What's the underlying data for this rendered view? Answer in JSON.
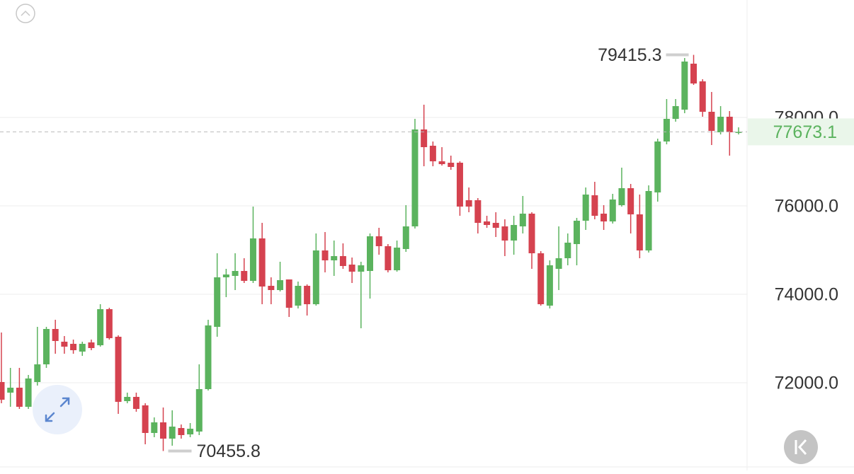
{
  "chart_data": {
    "type": "candlestick",
    "categories": [
      null,
      null,
      null,
      null,
      null,
      null,
      null,
      null,
      null,
      null,
      null,
      null,
      null,
      null,
      null,
      null,
      null,
      null,
      null,
      null,
      null,
      null,
      null,
      null,
      null,
      null,
      null,
      null,
      null,
      null,
      null,
      null,
      null,
      null,
      null,
      null,
      null,
      null,
      null,
      null,
      null,
      null,
      null,
      null,
      null,
      null,
      null,
      null,
      null,
      null,
      null,
      null,
      null,
      null,
      null,
      null,
      null,
      null,
      null,
      null,
      null,
      null,
      null,
      null,
      null,
      null,
      null,
      null,
      null,
      null,
      null,
      null,
      null,
      null,
      null,
      null,
      null,
      null,
      null,
      null,
      null,
      null,
      null
    ],
    "open": [
      72016,
      71776,
      71888,
      71456,
      72016,
      72416,
      73216,
      72928,
      72880,
      72704,
      72912,
      72848,
      73664,
      73040,
      71584,
      71680,
      71488,
      70864,
      71104,
      70736,
      70976,
      70832,
      70896,
      71856,
      73264,
      74384,
      74416,
      74528,
      74304,
      75264,
      74192,
      74096,
      74336,
      73744,
      74192,
      73776,
      74992,
      74768,
      74864,
      74672,
      74512,
      74528,
      75312,
      75088,
      74544,
      75024,
      75536,
      77728,
      77360,
      77008,
      76976,
      76976,
      76128,
      76128,
      75648,
      75616,
      75536,
      75216,
      75536,
      75824,
      74928,
      73744,
      74576,
      74816,
      75136,
      75664,
      76240,
      75824,
      75648,
      76016,
      76400,
      75808,
      74992,
      76304,
      77456,
      77968,
      78176,
      79216,
      78816,
      78128,
      77664,
      78016,
      77664
    ],
    "high": [
      73136,
      72336,
      72336,
      72176,
      73264,
      73264,
      73424,
      73056,
      72976,
      72928,
      72976,
      73776,
      73696,
      73072,
      71776,
      71776,
      71536,
      71216,
      71440,
      71376,
      71056,
      71088,
      72416,
      73424,
      74928,
      74576,
      74928,
      74816,
      75984,
      75616,
      74384,
      74736,
      74336,
      74288,
      74224,
      75376,
      75408,
      75216,
      75152,
      74832,
      74736,
      75376,
      75504,
      75136,
      75216,
      76016,
      77968,
      78288,
      77456,
      77328,
      77136,
      77008,
      76416,
      76176,
      75776,
      75856,
      75696,
      75776,
      76224,
      75856,
      74976,
      74768,
      75536,
      75376,
      75728,
      76416,
      76544,
      76016,
      76272,
      76864,
      76496,
      76256,
      76464,
      77520,
      78416,
      78416,
      79344,
      79415.3,
      78864,
      78576,
      78256,
      78144,
      77776
    ],
    "low": [
      71536,
      71456,
      71408,
      71408,
      71936,
      72336,
      72656,
      72656,
      72656,
      72608,
      72736,
      72816,
      72976,
      71296,
      71536,
      71344,
      70608,
      70768,
      70455.8,
      70576,
      70736,
      70768,
      70816,
      71824,
      73040,
      73936,
      74096,
      74256,
      74256,
      73776,
      73776,
      74064,
      73488,
      73680,
      73520,
      73744,
      74496,
      74416,
      74576,
      74256,
      73232,
      73904,
      74896,
      74496,
      74512,
      74960,
      75488,
      76896,
      76896,
      76912,
      76816,
      75776,
      75856,
      75376,
      75504,
      75296,
      74864,
      74896,
      75376,
      74576,
      73744,
      73680,
      74096,
      74656,
      74656,
      75456,
      75696,
      75456,
      75600,
      75984,
      75376,
      74816,
      74944,
      76096,
      77392,
      77904,
      78096,
      78736,
      78016,
      77376,
      77616,
      77136,
      77616
    ],
    "close": [
      71616,
      71888,
      71456,
      72096,
      72416,
      73216,
      72944,
      72816,
      72736,
      72880,
      72784,
      73664,
      73008,
      71568,
      71680,
      71408,
      70864,
      71104,
      70736,
      71008,
      70816,
      70960,
      71856,
      73296,
      74384,
      74448,
      74528,
      74304,
      75264,
      74176,
      74096,
      74320,
      73696,
      74192,
      73776,
      74992,
      74768,
      74864,
      74640,
      74512,
      74656,
      75312,
      75088,
      74544,
      75056,
      75536,
      77728,
      77328,
      77008,
      76944,
      76880,
      75984,
      75984,
      75616,
      75568,
      75504,
      75216,
      75568,
      75824,
      74928,
      73776,
      74656,
      74816,
      75168,
      75664,
      76256,
      75776,
      75648,
      76144,
      76400,
      75808,
      74992,
      76336,
      77456,
      77968,
      78256,
      79264,
      78768,
      78128,
      77696,
      78016,
      77664,
      77673.1
    ],
    "up_color": "#5bb35e",
    "down_color": "#d5424f",
    "ylim": [
      70096,
      80656
    ],
    "yticks": [
      {
        "value": 72000,
        "label": "72000.0"
      },
      {
        "value": 74000,
        "label": "74000.0"
      },
      {
        "value": 76000,
        "label": "76000.0"
      },
      {
        "value": 78000,
        "label": "78000.0"
      }
    ],
    "grid": true
  }
}
